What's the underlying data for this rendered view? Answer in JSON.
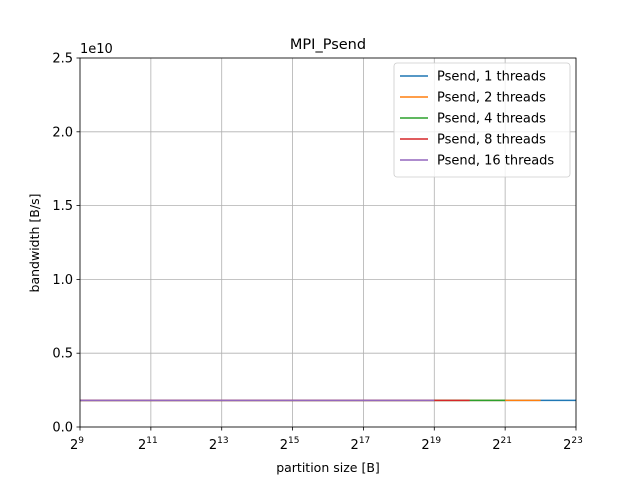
{
  "chart_data": {
    "type": "line",
    "title": "MPI_Psend",
    "xlabel": "partition size [B]",
    "ylabel": "bandwidth [B/s]",
    "x_scale": "log2",
    "xlim": [
      512,
      8388608
    ],
    "ylim": [
      0,
      25000000000
    ],
    "y_offset_label": "1e10",
    "x_ticks": [
      {
        "base": "2",
        "exp": "9",
        "value": 512
      },
      {
        "base": "2",
        "exp": "11",
        "value": 2048
      },
      {
        "base": "2",
        "exp": "13",
        "value": 8192
      },
      {
        "base": "2",
        "exp": "15",
        "value": 32768
      },
      {
        "base": "2",
        "exp": "17",
        "value": 131072
      },
      {
        "base": "2",
        "exp": "19",
        "value": 524288
      },
      {
        "base": "2",
        "exp": "21",
        "value": 2097152
      },
      {
        "base": "2",
        "exp": "23",
        "value": 8388608
      }
    ],
    "y_ticks": [
      {
        "label": "0.0",
        "value": 0
      },
      {
        "label": "0.5",
        "value": 5000000000
      },
      {
        "label": "1.0",
        "value": 10000000000
      },
      {
        "label": "1.5",
        "value": 15000000000
      },
      {
        "label": "2.0",
        "value": 20000000000
      },
      {
        "label": "2.5",
        "value": 25000000000
      }
    ],
    "grid": true,
    "legend_position": "top-right",
    "series": [
      {
        "name": "Psend, 1 threads",
        "color": "#1f77b4",
        "x": [
          512,
          8388608
        ],
        "y": [
          1800000000,
          1800000000
        ]
      },
      {
        "name": "Psend, 2 threads",
        "color": "#ff7f0e",
        "x": [
          512,
          4194304
        ],
        "y": [
          1800000000,
          1800000000
        ]
      },
      {
        "name": "Psend, 4 threads",
        "color": "#2ca02c",
        "x": [
          512,
          2097152
        ],
        "y": [
          1800000000,
          1800000000
        ]
      },
      {
        "name": "Psend, 8 threads",
        "color": "#d62728",
        "x": [
          512,
          1048576
        ],
        "y": [
          1800000000,
          1800000000
        ]
      },
      {
        "name": "Psend, 16 threads",
        "color": "#9467bd",
        "x": [
          512,
          524288
        ],
        "y": [
          1800000000,
          1800000000
        ]
      }
    ]
  }
}
